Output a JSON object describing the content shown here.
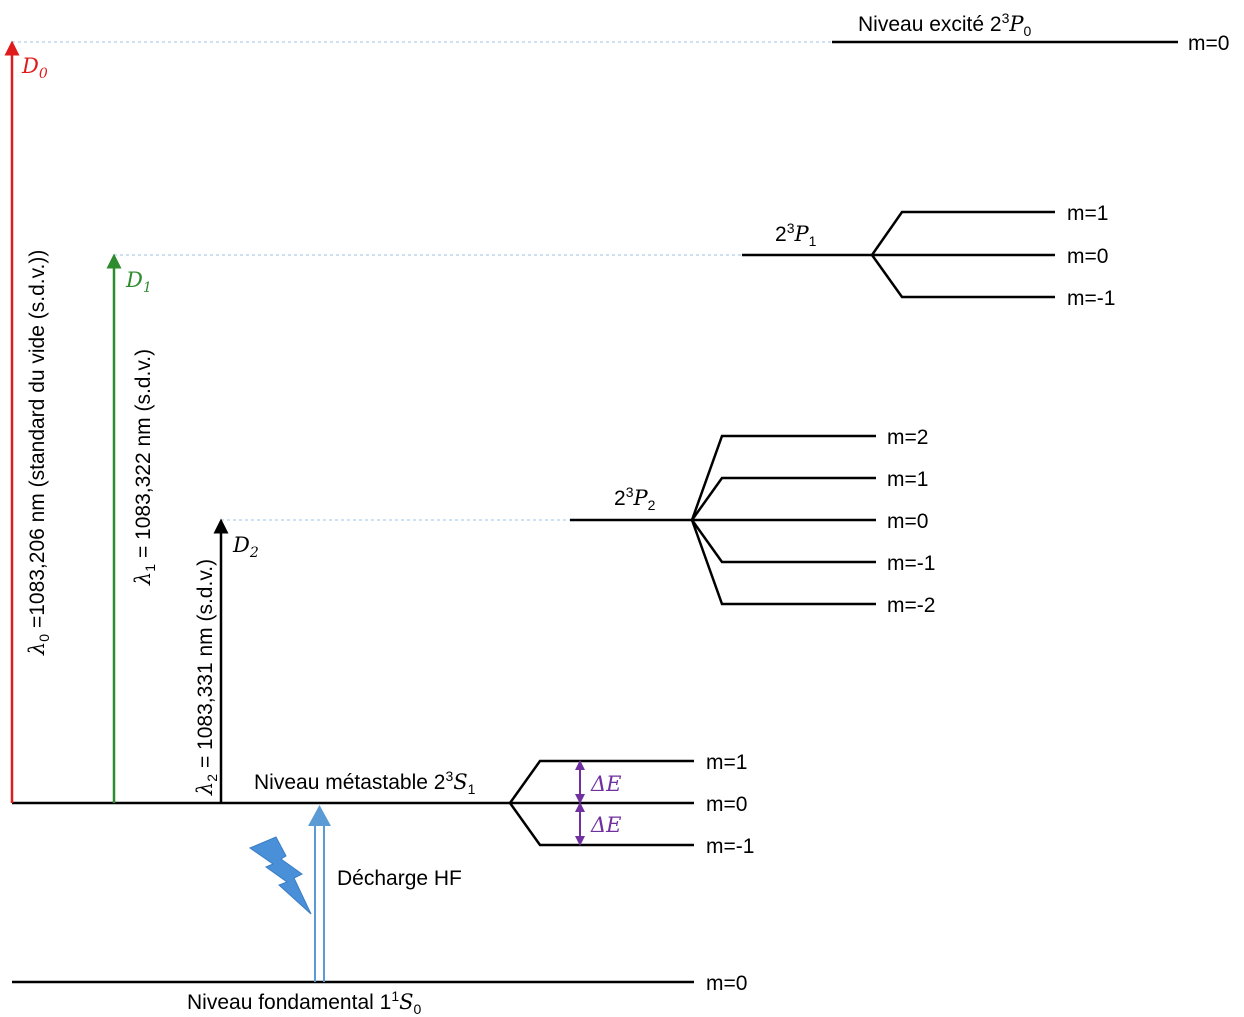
{
  "colors": {
    "d0": "#e01b1b",
    "d1": "#2e8b2e",
    "d2": "#000000",
    "delta_e": "#7030a0",
    "guide": "#9dc3e6",
    "hf_arrow": "#5b9bd5",
    "lightning": "#4a90d9"
  },
  "icons": {
    "lightning": "lightning-bolt-icon"
  },
  "levels": {
    "p0": {
      "prefix": "Niveau excité 2",
      "sup": "3",
      "sym": "P",
      "sub": "0",
      "m_labels": [
        "m=0"
      ]
    },
    "p1": {
      "prefix": "2",
      "sup": "3",
      "sym": "P",
      "sub": "1",
      "m_labels": [
        "m=1",
        "m=0",
        "m=-1"
      ]
    },
    "p2": {
      "prefix": "2",
      "sup": "3",
      "sym": "P",
      "sub": "2",
      "m_labels": [
        "m=2",
        "m=1",
        "m=0",
        "m=-1",
        "m=-2"
      ]
    },
    "s1": {
      "prefix": "Niveau métastable 2",
      "sup": "3",
      "sym": "S",
      "sub": "1",
      "m_labels": [
        "m=1",
        "m=0",
        "m=-1"
      ]
    },
    "s0": {
      "prefix": "Niveau fondamental 1",
      "sup": "1",
      "sym": "S",
      "sub": "0",
      "m_labels": [
        "m=0"
      ]
    }
  },
  "transitions": {
    "d0": {
      "name_sym": "D",
      "name_sub": "0",
      "lambda_sym": "λ",
      "lambda_sub": "0",
      "text": " =1083,206 nm (standard du vide (s.d.v.))"
    },
    "d1": {
      "name_sym": "D",
      "name_sub": "1",
      "lambda_sym": "λ",
      "lambda_sub": "1",
      "text": " = 1083,322 nm (s.d.v.)"
    },
    "d2": {
      "name_sym": "D",
      "name_sub": "2",
      "lambda_sym": "λ",
      "lambda_sub": "2",
      "text": " = 1083,331 nm (s.d.v.)"
    }
  },
  "delta_e": "ΔE",
  "excitation": {
    "label": "Décharge HF"
  }
}
